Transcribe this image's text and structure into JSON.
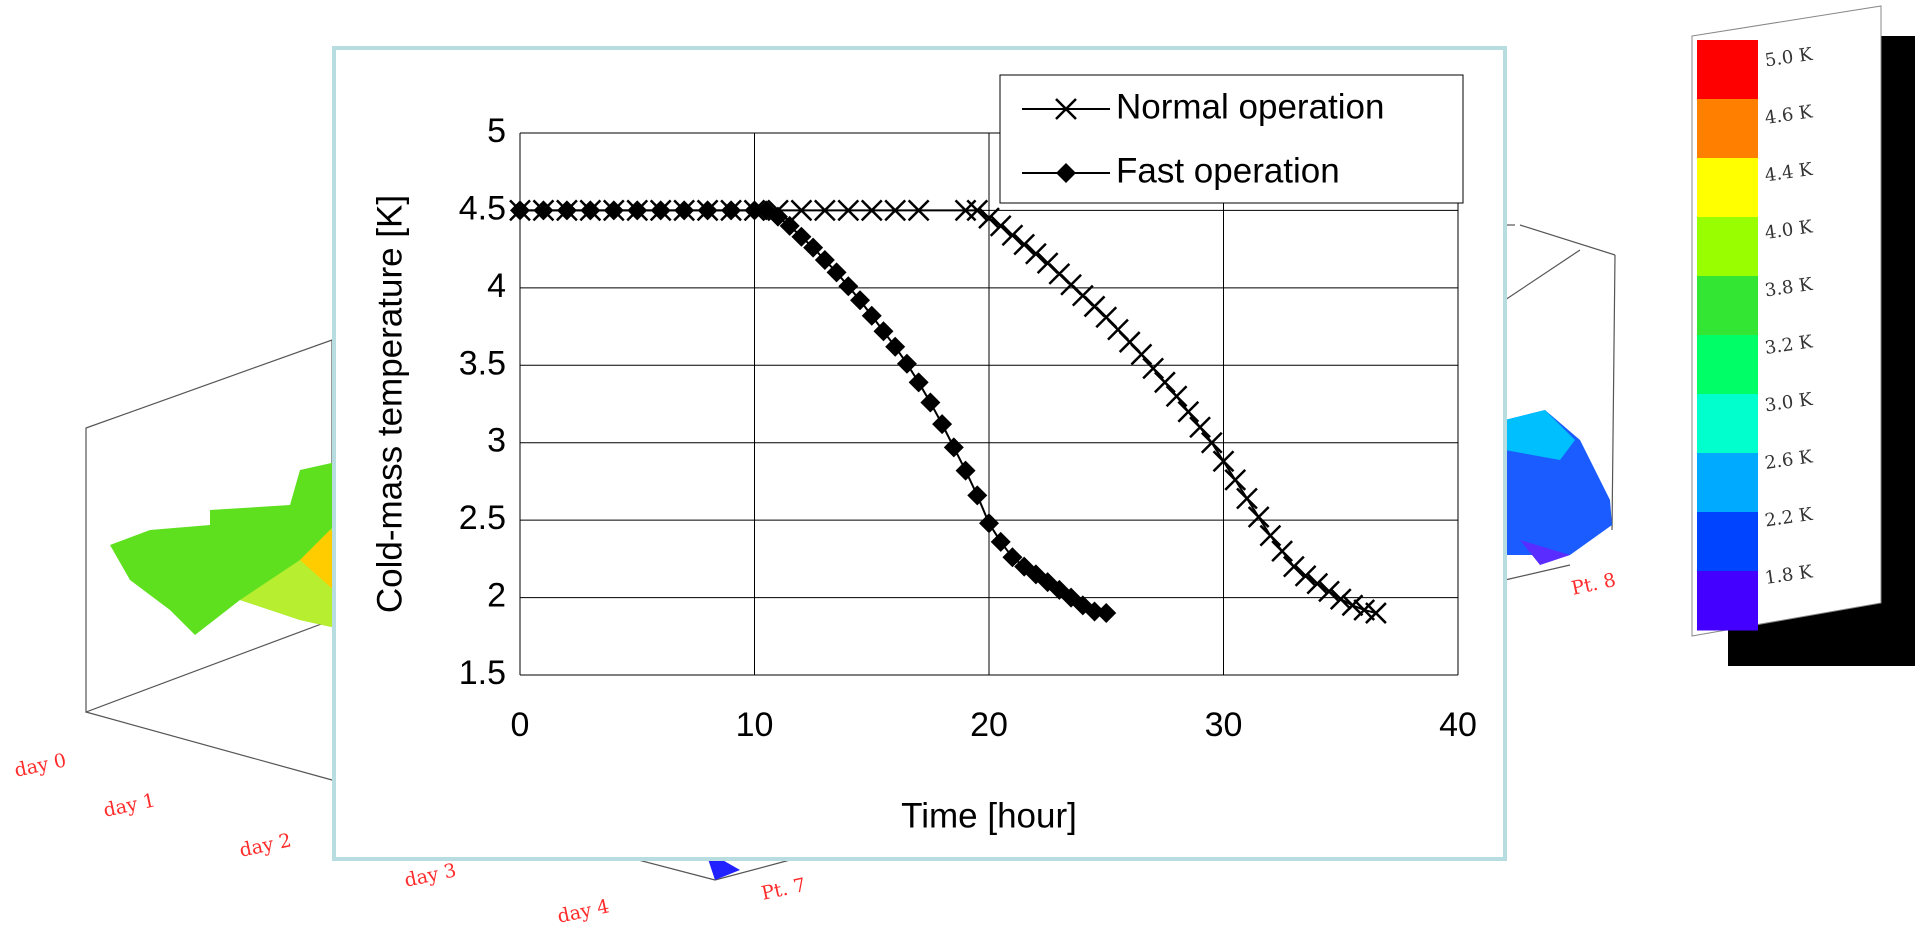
{
  "background": {
    "day_labels": [
      "day 0",
      "day 1",
      "day 2",
      "day 3",
      "day 4"
    ],
    "point_labels": [
      "Pt. 7",
      "Pt. 8"
    ],
    "color_scale": [
      {
        "label": "5.0 K",
        "color": "#ff0000"
      },
      {
        "label": "4.6 K",
        "color": "#ff7f00"
      },
      {
        "label": "4.4 K",
        "color": "#ffff00"
      },
      {
        "label": "4.0 K",
        "color": "#99ff00"
      },
      {
        "label": "3.8 K",
        "color": "#33e633"
      },
      {
        "label": "3.2 K",
        "color": "#00ff66"
      },
      {
        "label": "3.0 K",
        "color": "#00ffcc"
      },
      {
        "label": "2.6 K",
        "color": "#00aaff"
      },
      {
        "label": "2.2 K",
        "color": "#0044ff"
      },
      {
        "label": "1.8 K",
        "color": "#4400ff"
      }
    ]
  },
  "chart_data": {
    "type": "line",
    "x_label": "Time [hour]",
    "y_label": "Cold-mass temperature [K]",
    "xlim": [
      0,
      40
    ],
    "xticks": [
      0,
      10,
      20,
      30,
      40
    ],
    "ylim": [
      1.5,
      5
    ],
    "yticks": [
      1.5,
      2,
      2.5,
      3,
      3.5,
      4,
      4.5,
      5
    ],
    "grid": true,
    "legend": "top-right",
    "series": [
      {
        "name": "Normal operation",
        "color": "#000000",
        "marker": "x",
        "x": [
          0,
          1,
          2,
          3,
          4,
          5,
          6,
          7,
          8,
          9,
          10,
          11,
          12,
          13,
          14,
          15,
          16,
          17,
          19,
          19.5,
          20,
          20.5,
          21,
          21.5,
          22,
          22.5,
          23,
          23.5,
          24,
          24.5,
          25,
          25.5,
          26,
          26.5,
          27,
          27.5,
          28,
          28.5,
          29,
          29.5,
          30,
          30.5,
          31,
          31.5,
          32,
          32.5,
          33,
          33.5,
          34,
          34.5,
          35,
          35.5,
          36,
          36.5
        ],
        "values": [
          4.5,
          4.5,
          4.5,
          4.5,
          4.5,
          4.5,
          4.5,
          4.5,
          4.5,
          4.5,
          4.5,
          4.5,
          4.5,
          4.5,
          4.5,
          4.5,
          4.5,
          4.5,
          4.5,
          4.5,
          4.45,
          4.4,
          4.34,
          4.28,
          4.22,
          4.16,
          4.09,
          4.02,
          3.95,
          3.88,
          3.81,
          3.73,
          3.65,
          3.57,
          3.48,
          3.39,
          3.3,
          3.2,
          3.1,
          3.0,
          2.88,
          2.76,
          2.64,
          2.52,
          2.4,
          2.3,
          2.2,
          2.14,
          2.09,
          2.04,
          1.99,
          1.95,
          1.92,
          1.9
        ]
      },
      {
        "name": "Fast operation",
        "color": "#000000",
        "marker": "diamond",
        "x": [
          0,
          1,
          2,
          3,
          4,
          5,
          6,
          7,
          8,
          9,
          10,
          10.5,
          11,
          11.5,
          12,
          12.5,
          13,
          13.5,
          14,
          14.5,
          15,
          15.5,
          16,
          16.5,
          17,
          17.5,
          18,
          18.5,
          19,
          19.5,
          20,
          20.5,
          21,
          21.5,
          22,
          22.5,
          23,
          23.5,
          24,
          24.5,
          25
        ],
        "values": [
          4.5,
          4.5,
          4.5,
          4.5,
          4.5,
          4.5,
          4.5,
          4.5,
          4.5,
          4.5,
          4.5,
          4.5,
          4.46,
          4.4,
          4.33,
          4.26,
          4.18,
          4.1,
          4.01,
          3.92,
          3.82,
          3.72,
          3.62,
          3.51,
          3.39,
          3.26,
          3.12,
          2.97,
          2.82,
          2.66,
          2.48,
          2.36,
          2.26,
          2.2,
          2.15,
          2.1,
          2.05,
          2.0,
          1.95,
          1.91,
          1.9
        ]
      }
    ]
  }
}
